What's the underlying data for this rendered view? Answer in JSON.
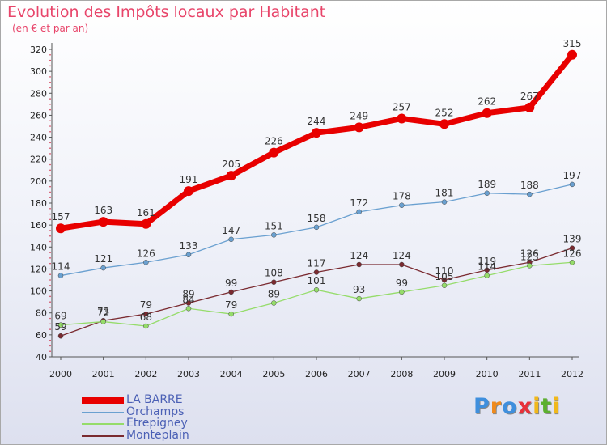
{
  "chart_data": {
    "type": "line",
    "title": "Evolution des Impôts locaux par Habitant",
    "subtitle": "(en € et par an)",
    "x": [
      "2000",
      "2001",
      "2002",
      "2003",
      "2004",
      "2005",
      "2006",
      "2007",
      "2008",
      "2009",
      "2010",
      "2011",
      "2012"
    ],
    "ylim": [
      40,
      320
    ],
    "yticks": [
      40,
      60,
      80,
      100,
      120,
      140,
      160,
      180,
      200,
      220,
      240,
      260,
      280,
      300,
      320
    ],
    "grid": false,
    "series": [
      {
        "name": "LA BARRE",
        "color": "#e80000",
        "values": [
          157,
          163,
          161,
          191,
          205,
          226,
          244,
          249,
          257,
          252,
          262,
          267,
          315
        ]
      },
      {
        "name": "Orchamps",
        "color": "#6aa0d0",
        "values": [
          114,
          121,
          126,
          133,
          147,
          151,
          158,
          172,
          178,
          181,
          189,
          188,
          197
        ]
      },
      {
        "name": "Etrepigney",
        "color": "#95dc6a",
        "values": [
          69,
          72,
          68,
          84,
          79,
          89,
          101,
          93,
          99,
          105,
          114,
          123,
          126
        ]
      },
      {
        "name": "Monteplain",
        "color": "#7a2a30",
        "values": [
          59,
          73,
          79,
          89,
          99,
          108,
          117,
          124,
          124,
          110,
          119,
          126,
          139
        ]
      }
    ]
  },
  "logo": {
    "letters": [
      "P",
      "r",
      "o",
      "x",
      "i",
      "t",
      "i"
    ],
    "colors": [
      "#3f8fdd",
      "#f08a1c",
      "#3f8fdd",
      "#e8303a",
      "#f0b81c",
      "#5cb030",
      "#f0b81c"
    ]
  }
}
